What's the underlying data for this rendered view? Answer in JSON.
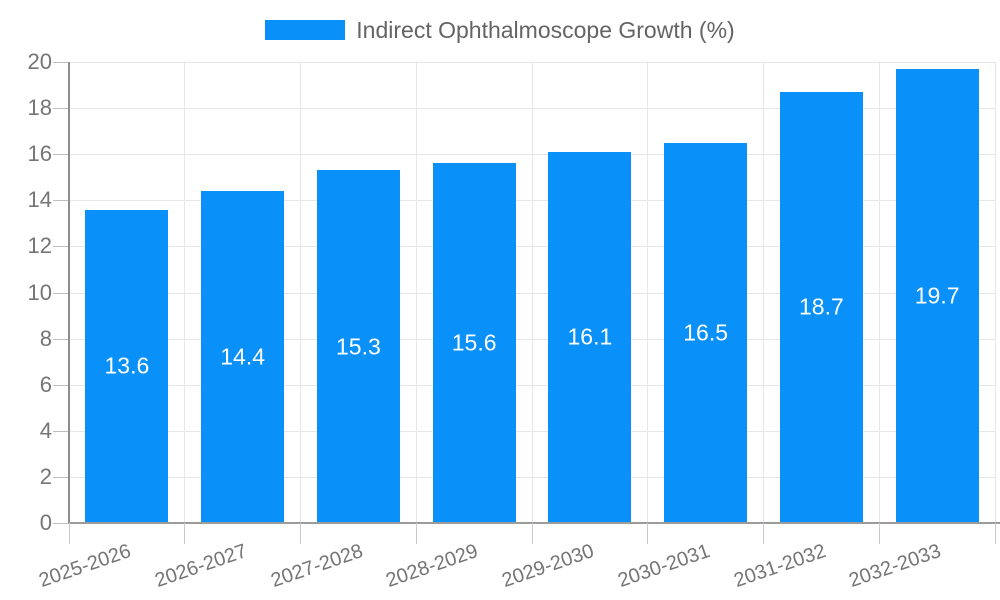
{
  "legend": {
    "label": "Indirect Ophthalmoscope Growth (%)"
  },
  "chart_data": {
    "type": "bar",
    "title": "",
    "series_name": "Indirect Ophthalmoscope Growth (%)",
    "categories": [
      "2025-2026",
      "2026-2027",
      "2027-2028",
      "2028-2029",
      "2029-2030",
      "2030-2031",
      "2031-2032",
      "2032-2033"
    ],
    "values": [
      13.6,
      14.4,
      15.3,
      15.6,
      16.1,
      16.5,
      18.7,
      19.7
    ],
    "value_labels": [
      "13.6",
      "14.4",
      "15.3",
      "15.6",
      "16.1",
      "16.5",
      "18.7",
      "19.7"
    ],
    "xlabel": "",
    "ylabel": "",
    "ylim": [
      0,
      20
    ],
    "y_ticks": [
      0,
      2,
      4,
      6,
      8,
      10,
      12,
      14,
      16,
      18,
      20
    ],
    "grid": true,
    "legend_position": "top"
  },
  "colors": {
    "bar": "#0a90f9",
    "bar_value_label": "#ffffff",
    "gridline": "#e7e7e7",
    "axis_line": "#8d8d8d",
    "tick": "#c9c9c9",
    "tick_label": "#757575",
    "legend_text": "#646464",
    "background": "#ffffff"
  }
}
